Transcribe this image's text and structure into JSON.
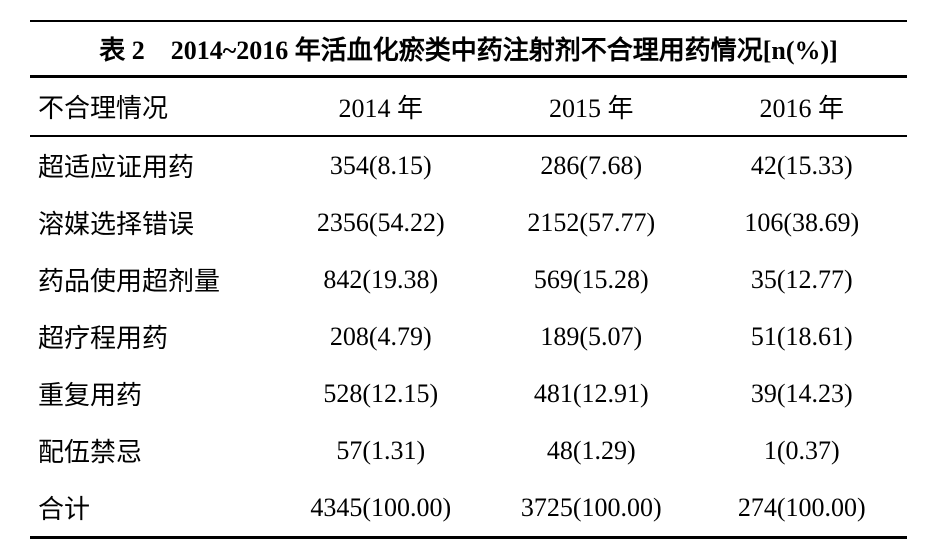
{
  "table": {
    "title": "表 2　2014~2016 年活血化瘀类中药注射剂不合理用药情况[n(%)]",
    "columns": [
      "不合理情况",
      "2014 年",
      "2015 年",
      "2016 年"
    ],
    "rows": [
      [
        "超适应证用药",
        "354(8.15)",
        "286(7.68)",
        "42(15.33)"
      ],
      [
        "溶媒选择错误",
        "2356(54.22)",
        "2152(57.77)",
        "106(38.69)"
      ],
      [
        "药品使用超剂量",
        "842(19.38)",
        "569(15.28)",
        "35(12.77)"
      ],
      [
        "超疗程用药",
        "208(4.79)",
        "189(5.07)",
        "51(18.61)"
      ],
      [
        "重复用药",
        "528(12.15)",
        "481(12.91)",
        "39(14.23)"
      ],
      [
        "配伍禁忌",
        "57(1.31)",
        "48(1.29)",
        "1(0.37)"
      ],
      [
        "合计",
        "4345(100.00)",
        "3725(100.00)",
        "274(100.00)"
      ]
    ],
    "colors": {
      "background": "#ffffff",
      "text": "#000000",
      "border": "#000000"
    },
    "font": {
      "family": "SimSun",
      "title_size": 26,
      "body_size": 26,
      "title_weight": "bold"
    }
  }
}
